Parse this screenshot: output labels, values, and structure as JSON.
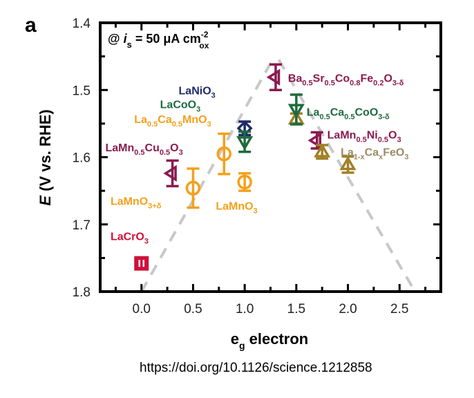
{
  "panel_letter": "a",
  "source": "https://doi.org/10.1126/science.1212858",
  "chart_data": {
    "type": "scatter",
    "title": "",
    "annotation": {
      "prefix": "@ ",
      "var": "i",
      "var_sub": "s",
      "text": " = 50 μA cm",
      "sup": "-2",
      "sub": "ox"
    },
    "xlabel": {
      "main": "e",
      "sub": "g",
      "rest": " electron"
    },
    "ylabel": {
      "italic": "E",
      "rest": " (V vs. RHE)"
    },
    "xlim": [
      -0.4,
      2.9
    ],
    "ylim": [
      1.4,
      1.8
    ],
    "y_inverted": true,
    "xticks": [
      0.0,
      0.5,
      1.0,
      1.5,
      2.0,
      2.5
    ],
    "xtick_labels": [
      "0.0",
      "0.5",
      "1.0",
      "1.5",
      "2.0",
      "2.5"
    ],
    "xminor": [
      -0.25,
      0.25,
      0.75,
      1.25,
      1.75,
      2.25,
      2.75
    ],
    "yticks": [
      1.4,
      1.5,
      1.6,
      1.7,
      1.8
    ],
    "ytick_labels": [
      "1.4",
      "1.5",
      "1.6",
      "1.7",
      "1.8"
    ],
    "yminor": [
      1.45,
      1.55,
      1.65,
      1.75
    ],
    "grid": false,
    "trend_lines": [
      {
        "name": "volcano-left",
        "x": [
          0.0,
          1.27
        ],
        "y": [
          1.8,
          1.455
        ]
      },
      {
        "name": "volcano-right",
        "x": [
          1.33,
          2.65
        ],
        "y": [
          1.455,
          1.8
        ]
      }
    ],
    "series": [
      {
        "name": "LaCrO3",
        "marker": "square",
        "color": "#d0103a",
        "x": 0.0,
        "y": 1.758,
        "err": 0.008,
        "label": [
          [
            "LaCrO",
            ""
          ],
          [
            "3",
            "sub"
          ]
        ],
        "label_pos": [
          -0.3,
          1.717
        ]
      },
      {
        "name": "LaMn0.5Cu0.5O3",
        "marker": "triangle-left",
        "color": "#8b1a4f",
        "x": 0.3,
        "y": 1.624,
        "err": 0.019,
        "label": [
          [
            "LaMn",
            ""
          ],
          [
            "0.5",
            "sub"
          ],
          [
            "Cu",
            ""
          ],
          [
            "0.5",
            "sub"
          ],
          [
            "O",
            ""
          ],
          [
            "3",
            "sub"
          ]
        ],
        "label_pos": [
          -0.35,
          1.585
        ]
      },
      {
        "name": "LaMnO3+δ",
        "marker": "circle",
        "color": "#f5a01c",
        "x": 0.5,
        "y": 1.646,
        "err": 0.029,
        "label": [
          [
            "LaMnO",
            ""
          ],
          [
            "3+δ",
            "sub"
          ]
        ],
        "label_pos": [
          -0.3,
          1.665
        ]
      },
      {
        "name": "La0.5Ca0.5MnO3",
        "marker": "circle",
        "color": "#f5a01c",
        "x": 0.8,
        "y": 1.595,
        "err": 0.03,
        "label": [
          [
            "La",
            ""
          ],
          [
            "0.5",
            "sub"
          ],
          [
            "Ca",
            ""
          ],
          [
            "0.5",
            "sub"
          ],
          [
            "MnO",
            ""
          ],
          [
            "3",
            "sub"
          ]
        ],
        "label_pos": [
          -0.07,
          1.543
        ]
      },
      {
        "name": "LaNiO3",
        "marker": "diamond",
        "color": "#1f2a6b",
        "x": 1.0,
        "y": 1.557,
        "err": 0.01,
        "label": [
          [
            "LaNiO",
            ""
          ],
          [
            "3",
            "sub"
          ]
        ],
        "label_pos": [
          0.36,
          1.5
        ]
      },
      {
        "name": "LaCoO3",
        "marker": "triangle-down",
        "color": "#1e6b3e",
        "x": 1.0,
        "y": 1.577,
        "err": 0.015,
        "label": [
          [
            "LaCoO",
            ""
          ],
          [
            "3",
            "sub"
          ]
        ],
        "label_pos": [
          0.18,
          1.521
        ]
      },
      {
        "name": "LaMnO3",
        "marker": "circle",
        "color": "#f5a01c",
        "x": 1.0,
        "y": 1.637,
        "err": 0.013,
        "label": [
          [
            "LaMnO",
            ""
          ],
          [
            "3",
            "sub"
          ]
        ],
        "label_pos": [
          0.72,
          1.672
        ]
      },
      {
        "name": "Ba0.5Sr0.5Co0.8Fe0.2O3-δ",
        "marker": "triangle-left",
        "color": "#8b1a4f",
        "x": 1.3,
        "y": 1.481,
        "err": 0.019,
        "label": [
          [
            "Ba",
            ""
          ],
          [
            "0.5",
            "sub"
          ],
          [
            "Sr",
            ""
          ],
          [
            "0.5",
            "sub"
          ],
          [
            "Co",
            ""
          ],
          [
            "0.8",
            "sub"
          ],
          [
            "Fe",
            ""
          ],
          [
            "0.2",
            "sub"
          ],
          [
            "O",
            ""
          ],
          [
            "3-δ",
            "sub"
          ]
        ],
        "label_pos": [
          1.42,
          1.482
        ]
      },
      {
        "name": "La1-xCaxFeO3 (x=1.5)",
        "marker": "triangle-up",
        "color": "#a08028",
        "x": 1.5,
        "y": 1.543,
        "err": 0.008,
        "label": null
      },
      {
        "name": "La0.5Ca0.5CoO3-δ",
        "marker": "triangle-down",
        "color": "#1e6b3e",
        "x": 1.5,
        "y": 1.529,
        "err": 0.022,
        "label": [
          [
            "La",
            ""
          ],
          [
            "0.5",
            "sub"
          ],
          [
            "Ca",
            ""
          ],
          [
            "0.5",
            "sub"
          ],
          [
            "CoO",
            ""
          ],
          [
            "3-δ",
            "sub"
          ]
        ],
        "label_pos": [
          1.6,
          1.532
        ]
      },
      {
        "name": "LaMn0.5Ni0.5O3",
        "marker": "triangle-left",
        "color": "#8b1a4f",
        "x": 1.7,
        "y": 1.575,
        "err": 0.012,
        "label": [
          [
            "LaMn",
            ""
          ],
          [
            "0.5",
            "sub"
          ],
          [
            "Ni",
            ""
          ],
          [
            "0.5",
            "sub"
          ],
          [
            "O",
            ""
          ],
          [
            "3",
            "sub"
          ]
        ],
        "label_pos": [
          1.8,
          1.566
        ]
      },
      {
        "name": "La1-xCaxFeO3 (x=1.75)",
        "marker": "triangle-up",
        "color": "#a08028",
        "x": 1.75,
        "y": 1.592,
        "err": 0.01,
        "label": [
          [
            "La",
            ""
          ],
          [
            "1-x",
            "sub"
          ],
          [
            "Ca",
            ""
          ],
          [
            "x",
            "sub"
          ],
          [
            "FeO",
            ""
          ],
          [
            "3",
            "sub"
          ]
        ],
        "label_pos": [
          1.93,
          1.592
        ],
        "label_color": "#9a8a66"
      },
      {
        "name": "La1-xCaxFeO3 (x=2.0)",
        "marker": "triangle-up",
        "color": "#a08028",
        "x": 2.0,
        "y": 1.611,
        "err": 0.012,
        "label": null
      }
    ]
  }
}
